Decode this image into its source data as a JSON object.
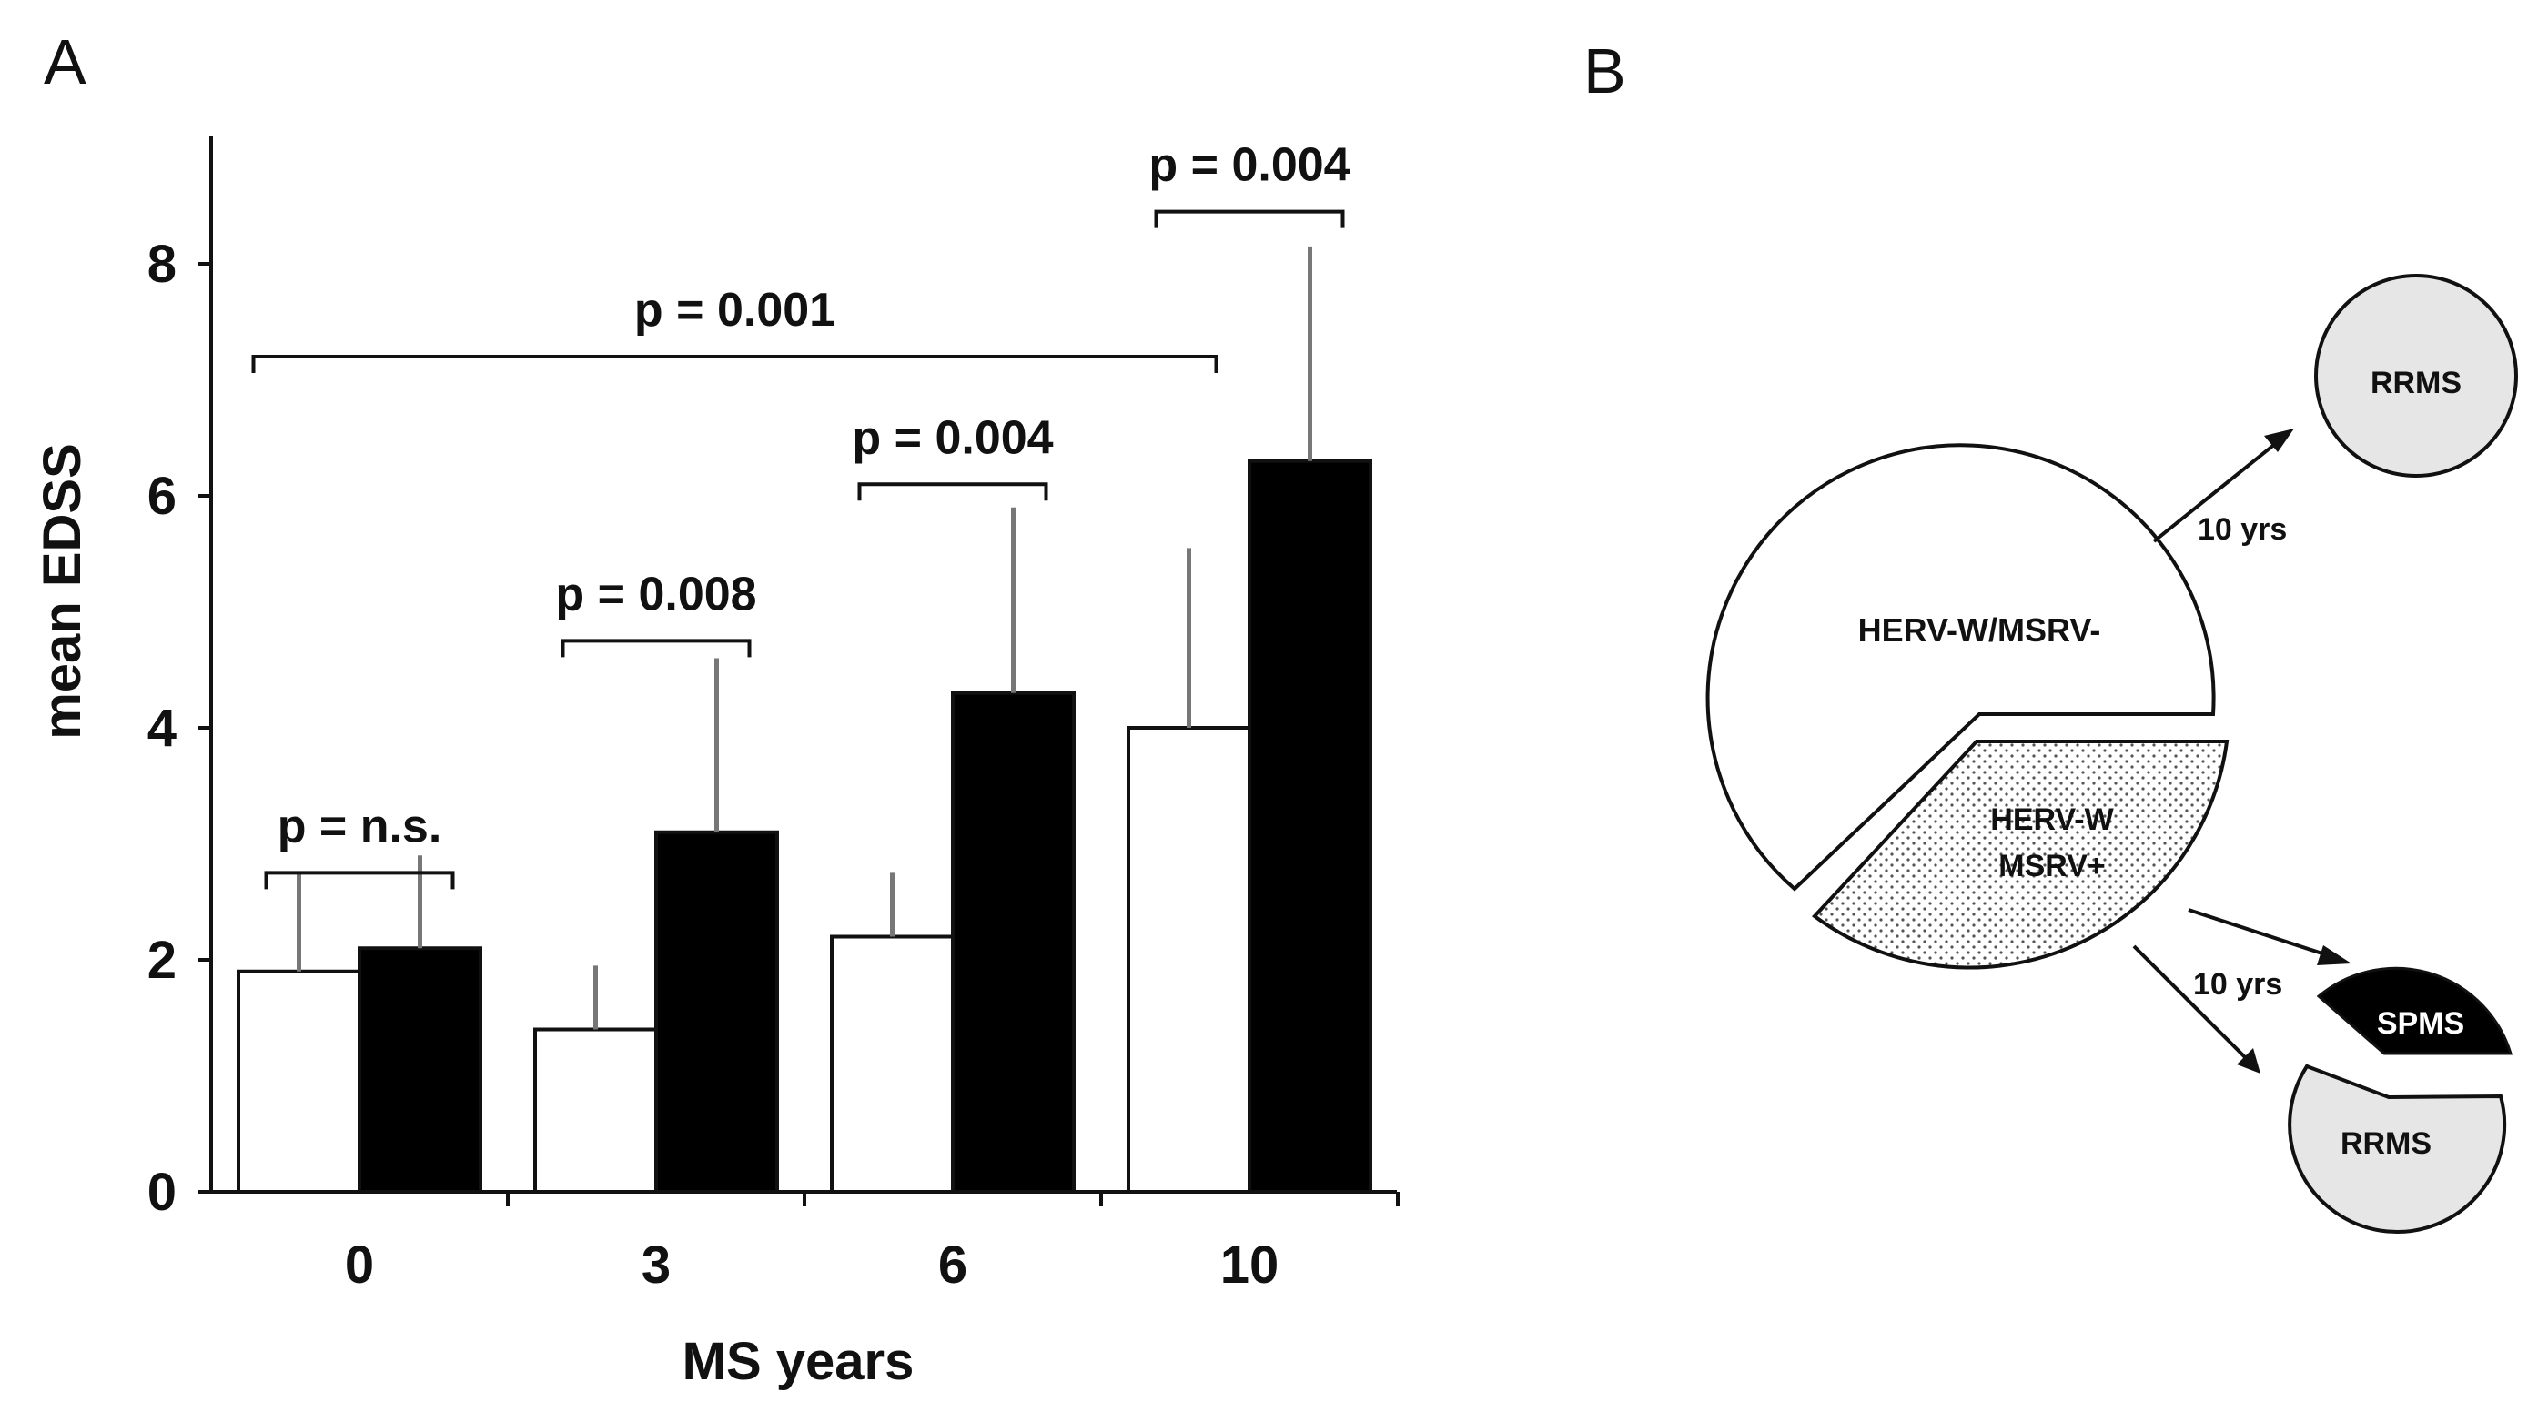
{
  "chart_data": [
    {
      "panel": "A",
      "type": "bar",
      "title": "",
      "xlabel": "MS years",
      "ylabel": "mean EDSS",
      "ylim": [
        0,
        9
      ],
      "yticks": [
        0,
        2,
        4,
        6,
        8
      ],
      "categories": [
        "0",
        "3",
        "6",
        "10"
      ],
      "grid": false,
      "series": [
        {
          "name": "HERV-W/MSRV-",
          "fill": "#ffffff",
          "values": [
            1.9,
            1.4,
            2.2,
            4.0
          ],
          "error_upper": [
            2.75,
            1.95,
            2.75,
            5.55
          ]
        },
        {
          "name": "HERV-W/MSRV+",
          "fill": "#000000",
          "values": [
            2.1,
            3.1,
            4.3,
            6.3
          ],
          "error_upper": [
            2.9,
            4.6,
            5.9,
            8.15
          ]
        }
      ],
      "comparisons": [
        {
          "label": "p = n.s.",
          "category": "0"
        },
        {
          "label": "p = 0.008",
          "category": "3"
        },
        {
          "label": "p = 0.004",
          "category": "6"
        },
        {
          "label": "p = 0.004",
          "category": "10"
        },
        {
          "label": "p = 0.001",
          "from": "0",
          "to": "10"
        }
      ]
    }
  ],
  "panel_b": {
    "letter": "B",
    "main_negative": "HERV-W/MSRV-",
    "main_positive_line1": "HERV-W",
    "main_positive_line2": "MSRV+",
    "arrow_label_top": "10 yrs",
    "arrow_label_bottom": "10 yrs",
    "outcome_top": "RRMS",
    "outcome_spms": "SPMS",
    "outcome_bottom": "RRMS"
  },
  "colors": {
    "ink": "#111111",
    "light_gray": "#e6e6e6",
    "dots": "#555555"
  }
}
